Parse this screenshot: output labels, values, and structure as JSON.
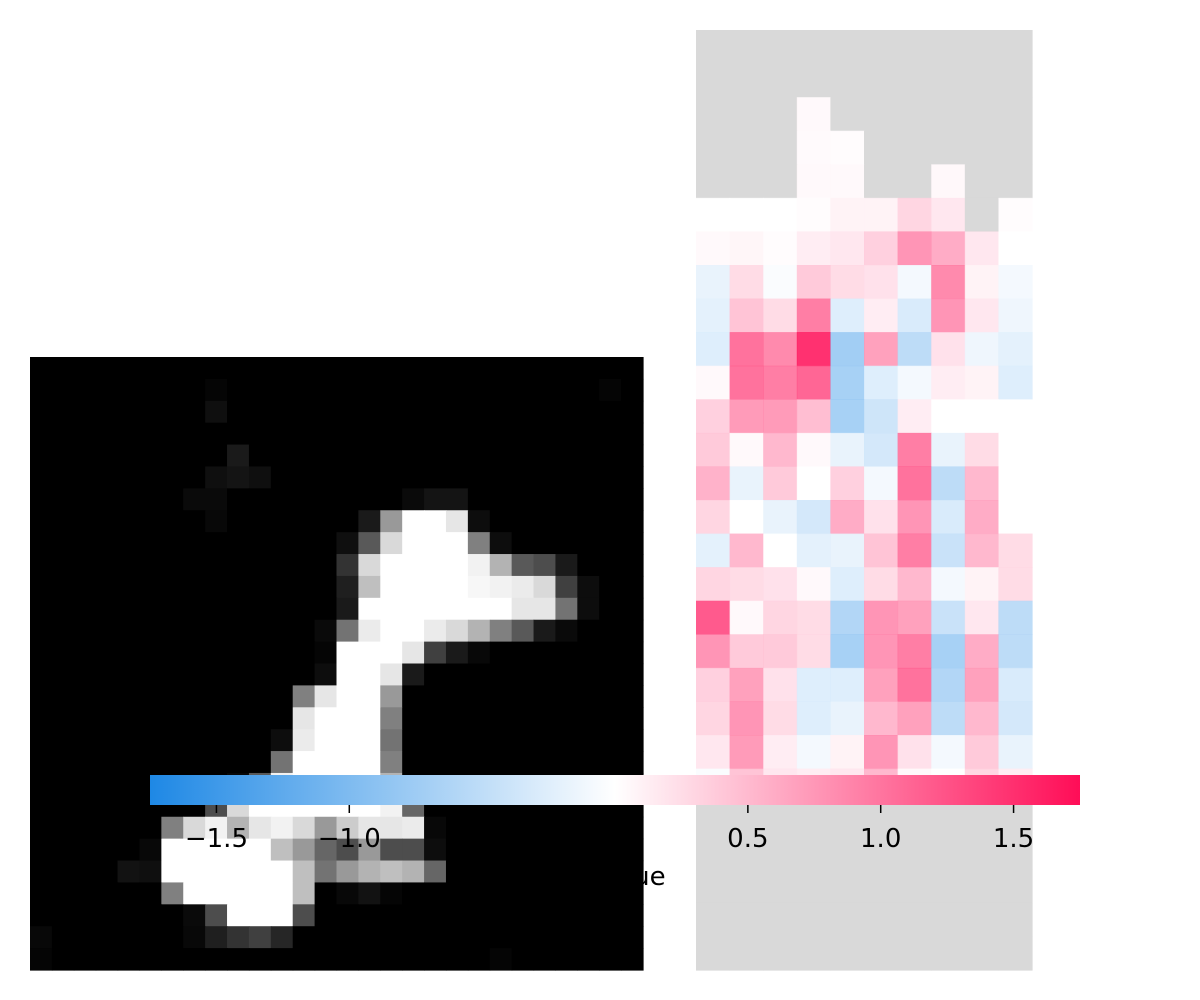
{
  "chart_data": [
    {
      "type": "heatmap",
      "panel": "input-image",
      "colormap": "gray",
      "value_range": [
        0,
        1
      ],
      "rows": 28,
      "cols": 28,
      "values": [
        [
          0,
          0,
          0,
          0,
          0,
          0,
          0,
          0,
          0,
          0,
          0,
          0,
          0,
          0,
          0,
          0,
          0,
          0,
          0,
          0,
          0,
          0,
          0,
          0,
          0,
          0,
          0,
          0
        ],
        [
          0,
          0,
          0,
          0,
          0,
          0,
          0,
          0,
          0.02,
          0,
          0,
          0,
          0,
          0,
          0,
          0,
          0,
          0,
          0,
          0,
          0,
          0,
          0,
          0,
          0,
          0,
          0.02,
          0
        ],
        [
          0,
          0,
          0,
          0,
          0,
          0,
          0,
          0,
          0.06,
          0,
          0,
          0,
          0,
          0,
          0,
          0,
          0,
          0,
          0,
          0,
          0,
          0,
          0,
          0,
          0,
          0,
          0,
          0
        ],
        [
          0,
          0,
          0,
          0,
          0,
          0,
          0,
          0,
          0,
          0,
          0,
          0,
          0,
          0,
          0,
          0,
          0,
          0,
          0,
          0,
          0,
          0,
          0,
          0,
          0,
          0,
          0,
          0
        ],
        [
          0,
          0,
          0,
          0,
          0,
          0,
          0,
          0,
          0,
          0.1,
          0,
          0,
          0,
          0,
          0,
          0,
          0,
          0,
          0,
          0,
          0,
          0,
          0,
          0,
          0,
          0,
          0,
          0
        ],
        [
          0,
          0,
          0,
          0,
          0,
          0,
          0,
          0,
          0.06,
          0.08,
          0.06,
          0,
          0,
          0,
          0,
          0,
          0,
          0,
          0,
          0,
          0,
          0,
          0,
          0,
          0,
          0,
          0,
          0
        ],
        [
          0,
          0,
          0,
          0,
          0,
          0,
          0,
          0.04,
          0.04,
          0,
          0,
          0,
          0,
          0,
          0,
          0,
          0,
          0.04,
          0.08,
          0.08,
          0,
          0,
          0,
          0,
          0,
          0,
          0,
          0
        ],
        [
          0,
          0,
          0,
          0,
          0,
          0,
          0,
          0,
          0.03,
          0,
          0,
          0,
          0,
          0,
          0,
          0.1,
          0.6,
          1,
          1,
          0.9,
          0.05,
          0,
          0,
          0,
          0,
          0,
          0,
          0
        ],
        [
          0,
          0,
          0,
          0,
          0,
          0,
          0,
          0,
          0,
          0,
          0,
          0,
          0,
          0,
          0.06,
          0.35,
          0.85,
          1,
          1,
          1,
          0.5,
          0.05,
          0,
          0,
          0,
          0,
          0,
          0
        ],
        [
          0,
          0,
          0,
          0,
          0,
          0,
          0,
          0,
          0,
          0,
          0,
          0,
          0,
          0,
          0.2,
          0.85,
          1,
          1,
          1,
          1,
          0.95,
          0.7,
          0.35,
          0.3,
          0.1,
          0,
          0,
          0
        ],
        [
          0,
          0,
          0,
          0,
          0,
          0,
          0,
          0,
          0,
          0,
          0,
          0,
          0,
          0,
          0.12,
          0.75,
          1,
          1,
          1,
          1,
          0.97,
          0.95,
          0.92,
          0.85,
          0.25,
          0.05,
          0,
          0
        ],
        [
          0,
          0,
          0,
          0,
          0,
          0,
          0,
          0,
          0,
          0,
          0,
          0,
          0,
          0,
          0.1,
          1,
          1,
          1,
          1,
          1,
          1,
          1,
          0.9,
          0.9,
          0.45,
          0.05,
          0,
          0
        ],
        [
          0,
          0,
          0,
          0,
          0,
          0,
          0,
          0,
          0,
          0,
          0,
          0,
          0,
          0.04,
          0.45,
          0.92,
          1,
          1,
          0.92,
          0.85,
          0.7,
          0.5,
          0.35,
          0.1,
          0.04,
          0,
          0,
          0
        ],
        [
          0,
          0,
          0,
          0,
          0,
          0,
          0,
          0,
          0,
          0,
          0,
          0,
          0,
          0.02,
          1,
          1,
          1,
          0.9,
          0.25,
          0.1,
          0.03,
          0,
          0,
          0,
          0,
          0,
          0,
          0
        ],
        [
          0,
          0,
          0,
          0,
          0,
          0,
          0,
          0,
          0,
          0,
          0,
          0,
          0,
          0.05,
          1,
          1,
          0.9,
          0.1,
          0,
          0,
          0,
          0,
          0,
          0,
          0,
          0,
          0,
          0
        ],
        [
          0,
          0,
          0,
          0,
          0,
          0,
          0,
          0,
          0,
          0,
          0,
          0,
          0.5,
          0.9,
          1,
          1,
          0.6,
          0,
          0,
          0,
          0,
          0,
          0,
          0,
          0,
          0,
          0,
          0
        ],
        [
          0,
          0,
          0,
          0,
          0,
          0,
          0,
          0,
          0,
          0,
          0,
          0,
          0.9,
          1,
          1,
          1,
          0.5,
          0,
          0,
          0,
          0,
          0,
          0,
          0,
          0,
          0,
          0,
          0
        ],
        [
          0,
          0,
          0,
          0,
          0,
          0,
          0,
          0,
          0,
          0,
          0,
          0.05,
          0.92,
          1,
          1,
          1,
          0.45,
          0,
          0,
          0,
          0,
          0,
          0,
          0,
          0,
          0,
          0,
          0
        ],
        [
          0,
          0,
          0,
          0,
          0,
          0,
          0,
          0,
          0,
          0,
          0,
          0.45,
          1,
          1,
          1,
          1,
          0.5,
          0,
          0,
          0,
          0,
          0,
          0,
          0,
          0,
          0,
          0,
          0
        ],
        [
          0,
          0,
          0,
          0,
          0,
          0,
          0,
          0,
          0,
          0.03,
          0.35,
          0.95,
          1,
          1,
          1,
          1,
          0.7,
          0,
          0,
          0,
          0,
          0,
          0,
          0,
          0,
          0,
          0,
          0
        ],
        [
          0,
          0,
          0,
          0,
          0,
          0,
          0,
          0,
          0.3,
          0.85,
          1,
          1,
          1,
          1,
          1,
          1,
          0.95,
          0.4,
          0,
          0,
          0,
          0,
          0,
          0,
          0,
          0,
          0,
          0
        ],
        [
          0,
          0,
          0,
          0,
          0,
          0,
          0.5,
          0.85,
          0.95,
          0.7,
          0.9,
          0.95,
          0.85,
          0.6,
          0.8,
          0.9,
          0.9,
          0.92,
          0.03,
          0,
          0,
          0,
          0,
          0,
          0,
          0,
          0,
          0
        ],
        [
          0,
          0,
          0,
          0,
          0,
          0.03,
          1,
          1,
          1,
          1,
          1,
          0.75,
          0.6,
          0.4,
          0.3,
          0.6,
          0.3,
          0.3,
          0.05,
          0,
          0,
          0,
          0,
          0,
          0,
          0,
          0,
          0
        ],
        [
          0,
          0,
          0,
          0,
          0.07,
          0.06,
          1,
          1,
          1,
          1,
          1,
          1,
          0.75,
          0.45,
          0.6,
          0.7,
          0.75,
          0.7,
          0.4,
          0,
          0,
          0,
          0,
          0,
          0,
          0,
          0,
          0
        ],
        [
          0,
          0,
          0,
          0,
          0,
          0,
          0.5,
          1,
          1,
          1,
          1,
          1,
          0.75,
          0,
          0.03,
          0.07,
          0.02,
          0,
          0,
          0,
          0,
          0,
          0,
          0,
          0,
          0,
          0,
          0
        ],
        [
          0,
          0,
          0,
          0,
          0,
          0,
          0,
          0.04,
          0.3,
          1,
          1,
          1,
          0.3,
          0,
          0,
          0,
          0,
          0,
          0,
          0,
          0,
          0,
          0,
          0,
          0,
          0,
          0,
          0
        ],
        [
          0.03,
          0,
          0,
          0,
          0,
          0,
          0,
          0.03,
          0.12,
          0.2,
          0.25,
          0.15,
          0,
          0,
          0,
          0,
          0,
          0,
          0,
          0,
          0,
          0,
          0,
          0,
          0,
          0,
          0,
          0
        ],
        [
          0.02,
          0,
          0,
          0,
          0,
          0,
          0,
          0,
          0,
          0,
          0,
          0,
          0,
          0,
          0,
          0,
          0,
          0,
          0,
          0,
          0,
          0.02,
          0,
          0,
          0,
          0,
          0,
          0
        ]
      ]
    },
    {
      "type": "heatmap",
      "panel": "attribution-map",
      "colormap": "blue-white-red",
      "rows": 28,
      "cols": 10,
      "values": [
        [
          null,
          null,
          null,
          null,
          null,
          null,
          null,
          null,
          null,
          null
        ],
        [
          null,
          null,
          null,
          null,
          null,
          null,
          null,
          null,
          null,
          null
        ],
        [
          null,
          null,
          null,
          0.05,
          null,
          null,
          null,
          null,
          null,
          null
        ],
        [
          null,
          null,
          null,
          0.04,
          0.02,
          null,
          null,
          null,
          null,
          null
        ],
        [
          null,
          null,
          null,
          0.05,
          0.05,
          null,
          null,
          0.06,
          null,
          null
        ],
        [
          0,
          0,
          0,
          0.02,
          0.1,
          0.1,
          0.35,
          0.2,
          null,
          0.02
        ],
        [
          0.05,
          0.08,
          0.02,
          0.15,
          0.2,
          0.4,
          0.9,
          0.7,
          0.2,
          0
        ],
        [
          -0.2,
          0.3,
          -0.05,
          0.45,
          0.3,
          0.25,
          -0.1,
          1,
          0.1,
          -0.1
        ],
        [
          -0.25,
          0.5,
          0.3,
          1.1,
          -0.3,
          0.15,
          -0.35,
          0.9,
          0.2,
          -0.15
        ],
        [
          -0.3,
          1.2,
          1,
          1.75,
          -0.85,
          0.8,
          -0.6,
          0.25,
          -0.15,
          -0.25
        ],
        [
          0.05,
          1.2,
          1.1,
          1.3,
          -0.8,
          -0.3,
          -0.1,
          0.15,
          0.1,
          -0.3
        ],
        [
          0.4,
          0.85,
          0.85,
          0.55,
          -0.8,
          -0.45,
          0.15,
          0,
          0,
          0
        ],
        [
          0.45,
          0.05,
          0.6,
          0.05,
          -0.2,
          -0.4,
          1.1,
          -0.2,
          0.3,
          0
        ],
        [
          0.65,
          -0.2,
          0.45,
          0,
          0.4,
          -0.1,
          1.2,
          -0.6,
          0.6,
          0
        ],
        [
          0.35,
          0,
          -0.2,
          -0.4,
          0.7,
          0.25,
          0.9,
          -0.35,
          0.7,
          0
        ],
        [
          -0.25,
          0.6,
          0,
          -0.25,
          -0.2,
          0.5,
          1.1,
          -0.5,
          0.6,
          0.3
        ],
        [
          0.35,
          0.3,
          0.25,
          0.05,
          -0.3,
          0.3,
          0.6,
          -0.1,
          0.1,
          0.3
        ],
        [
          1.4,
          0.05,
          0.35,
          0.3,
          -0.7,
          0.9,
          0.8,
          -0.5,
          0.2,
          -0.6
        ],
        [
          0.9,
          0.45,
          0.45,
          0.3,
          -0.8,
          0.9,
          1.1,
          -0.8,
          0.7,
          -0.6
        ],
        [
          0.4,
          0.8,
          0.25,
          -0.3,
          -0.3,
          0.8,
          1.2,
          -0.7,
          0.8,
          -0.35
        ],
        [
          0.35,
          0.9,
          0.3,
          -0.3,
          -0.2,
          0.6,
          0.8,
          -0.6,
          0.6,
          -0.4
        ],
        [
          0.2,
          0.85,
          0.15,
          -0.1,
          0.1,
          0.9,
          0.25,
          -0.1,
          0.45,
          -0.2
        ],
        [
          -0.05,
          0.5,
          0.2,
          0.15,
          0.2,
          0.6,
          0.05,
          0,
          0.35,
          0.15
        ],
        [
          null,
          null,
          null,
          null,
          null,
          null,
          null,
          null,
          null,
          null
        ],
        [
          null,
          null,
          null,
          null,
          null,
          null,
          null,
          null,
          null,
          null
        ],
        [
          null,
          null,
          null,
          null,
          null,
          null,
          null,
          null,
          null,
          null
        ],
        [
          null,
          null,
          null,
          null,
          null,
          null,
          null,
          null,
          null,
          null
        ],
        [
          null,
          null,
          null,
          null,
          null,
          null,
          null,
          null,
          null,
          null
        ]
      ]
    },
    {
      "type": "colorbar",
      "orientation": "horizontal",
      "range": [
        -1.75,
        1.75
      ],
      "ticks": [
        {
          "value": -1.5,
          "label": "−1.5"
        },
        {
          "value": -1.0,
          "label": "−1.0"
        },
        {
          "value": 0.5,
          "label": "0.5"
        },
        {
          "value": 1.0,
          "label": "1.0"
        },
        {
          "value": 1.5,
          "label": "1.5"
        }
      ],
      "label": "alue"
    }
  ],
  "colors": {
    "negative": "#1e88e5",
    "midpoint": "#ffffff",
    "positive": "#ff0d57",
    "empty_cell": "#d9d9d9"
  }
}
